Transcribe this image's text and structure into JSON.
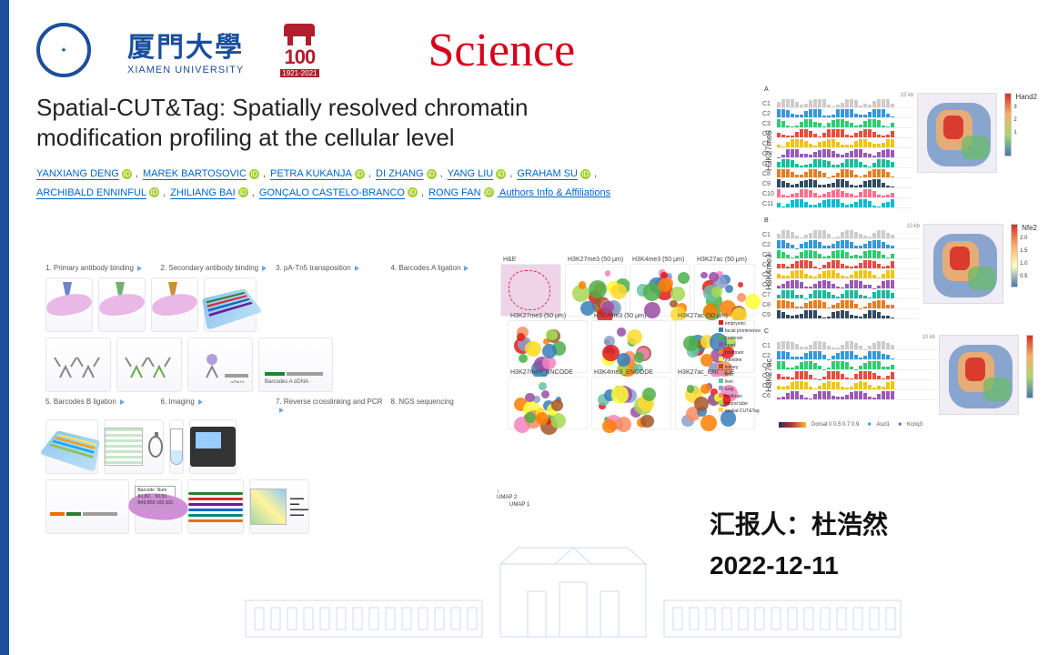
{
  "header": {
    "xmu_cn": "厦門大學",
    "xmu_en": "XIAMEN UNIVERSITY",
    "anniversary_number": "100",
    "anniversary_years": "1921-2021",
    "anniversary_sub": "厦门大学",
    "journal": "Science"
  },
  "paper": {
    "title": "Spatial-CUT&Tag: Spatially resolved chromatin modification profiling at the cellular level",
    "authors": [
      "YANXIANG DENG",
      "MAREK BARTOSOVIC",
      "PETRA KUKANJA",
      "DI ZHANG",
      "YANG LIU",
      "GRAHAM SU",
      "ARCHIBALD ENNINFUL",
      "ZHILIANG BAI",
      "GONÇALO CASTELO-BRANCO",
      "RONG FAN"
    ],
    "info_link": "Authors Info & Affiliations"
  },
  "workflow": {
    "steps": [
      "1. Primary antibody binding",
      "2. Secondary antibody binding",
      "3. pA-Tn5 transposition",
      "4. Barcodes A ligation",
      "5. Barcodes B ligation",
      "6. Imaging",
      "7. Reverse crosslinking and PCR",
      "8. NGS sequencing"
    ],
    "chip_label_a": "Barcode A1-A50",
    "chip_label_b": "Barcode B1-B50",
    "bottom_labels": [
      "Barcodes B",
      "Barcodes A",
      "gDNA"
    ],
    "bottom_labels2": [
      "P5, BBC B",
      "Barcodes A",
      "gDNA",
      "Index, P7"
    ],
    "barcode_colors": [
      "#2e7d32",
      "#d32f2f",
      "#6a1b9a",
      "#1565c0",
      "#00897b",
      "#ef6c00"
    ]
  },
  "fig_center": {
    "row1_titles": [
      "H&E",
      "H3K27me3 (50 μm)",
      "H3K4me3 (50 μm)",
      "H3K27ac (50 μm)"
    ],
    "row2_titles": [
      "H3K27me3 (50 μm)",
      "H3K4me3 (50 μm)",
      "H3K27ac (50 μm)"
    ],
    "row3_titles": [
      "H3K27me3_ENCODE",
      "H3K4me3_ENCODE",
      "H3K27ac_ENCODE"
    ],
    "umap_axis": "UMAP 1",
    "umap_axis2": "UMAP 2",
    "anno_labels": [
      "spinal cord",
      "forebrain",
      "hindbrain",
      "heart",
      "liver",
      "mesenchyme",
      "neural crest"
    ],
    "legend_items": [
      "embryonic",
      "facial prominence",
      "forebrain",
      "heart",
      "hindbrain",
      "intestine",
      "kidney",
      "limb",
      "liver",
      "lung",
      "midbrain",
      "neural tube",
      "spatial-CUT&Tag"
    ],
    "cluster_colors": [
      "#e41a1c",
      "#377eb8",
      "#4daf4a",
      "#984ea3",
      "#ff7f00",
      "#ffff33",
      "#a65628",
      "#f781bf",
      "#66c2a5",
      "#8da0cb",
      "#fc8d62",
      "#a6d854",
      "#ffd92f"
    ]
  },
  "fig_right": {
    "panels": [
      {
        "letter": "A",
        "ylabel": "H3K27me3",
        "gene": "Hand2",
        "clusters": [
          "C1",
          "C2",
          "C3",
          "C4",
          "C5",
          "C6",
          "C7",
          "C8",
          "C9",
          "C10",
          "C11"
        ],
        "scalebar": "15 kb",
        "cbar_ticks": [
          "3",
          "2",
          "1"
        ]
      },
      {
        "letter": "B",
        "ylabel": "H3K4me3",
        "gene": "Nfe2",
        "clusters": [
          "C1",
          "C2",
          "C3",
          "C4",
          "C5",
          "C6",
          "C7",
          "C8",
          "C9"
        ],
        "scalebar": "10 kb",
        "cbar_ticks": [
          "2.0",
          "1.5",
          "1.0",
          "0.5"
        ]
      },
      {
        "letter": "C",
        "ylabel": "H3K27ac",
        "gene": "",
        "clusters": [
          "C1",
          "C2",
          "C3",
          "C4",
          "C5",
          "C6"
        ],
        "scalebar": "10 kb",
        "cbar_ticks": [],
        "extras": {
          "vista": "VISTA validated enhancers",
          "pred": "Predicted enhancers",
          "hs": [
            "hs1122",
            "hs1093"
          ],
          "dorsalbar": "Dorsal",
          "dorsal_ticks": "0 0.5 0.7 0.9",
          "genes": [
            "Ascl1",
            "Kcnq3"
          ]
        }
      }
    ],
    "track_colors": [
      "#cccccc",
      "#3498db",
      "#2ecc71",
      "#e74c3c",
      "#f1c40f",
      "#9b59b6",
      "#1abc9c",
      "#e67e22",
      "#34495e",
      "#ff6f91",
      "#00bcd4"
    ]
  },
  "presenter": {
    "label": "汇报人：杜浩然",
    "date": "2022-12-11"
  },
  "colors": {
    "accent": "#1b4f9c",
    "science_red": "#d6001c",
    "xmu_red": "#b01e2e",
    "link": "#0066cc"
  }
}
